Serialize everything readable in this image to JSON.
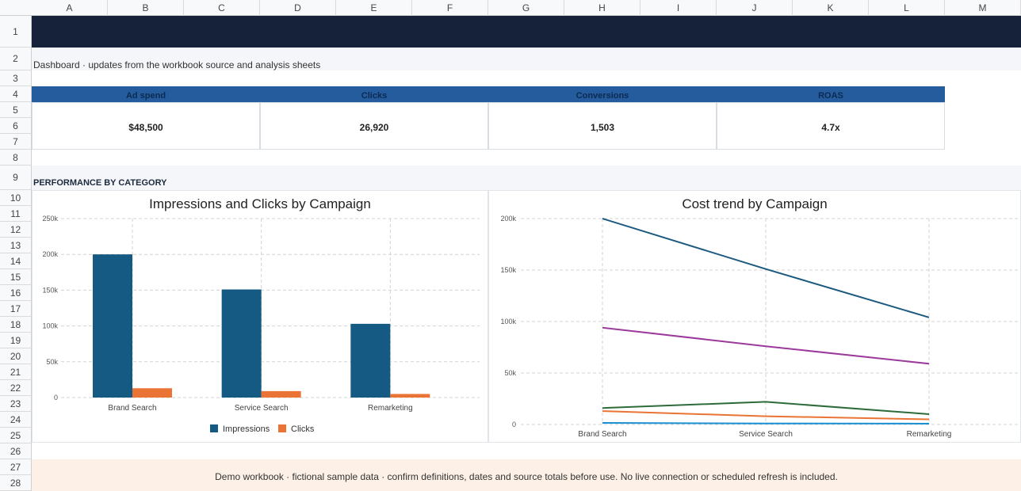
{
  "columns": [
    "A",
    "B",
    "C",
    "D",
    "E",
    "F",
    "G",
    "H",
    "I",
    "J",
    "K",
    "L",
    "M"
  ],
  "rows": [
    "1",
    "2",
    "3",
    "4",
    "5",
    "6",
    "7",
    "8",
    "9",
    "10",
    "11",
    "12",
    "13",
    "14",
    "15",
    "16",
    "17",
    "18",
    "19",
    "20",
    "21",
    "22",
    "23",
    "24",
    "25",
    "26",
    "27",
    "28"
  ],
  "subtitle": "Dashboard · updates from the workbook source and analysis sheets",
  "kpis": [
    {
      "label": "Ad spend",
      "value": "$48,500"
    },
    {
      "label": "Clicks",
      "value": "26,920"
    },
    {
      "label": "Conversions",
      "value": "1,503"
    },
    {
      "label": "ROAS",
      "value": "4.7x"
    }
  ],
  "section_title": "PERFORMANCE BY CATEGORY",
  "footer": "Demo workbook · fictional sample data · confirm definitions, dates and source totals before use. No live connection or scheduled refresh is included.",
  "colors": {
    "title_band": "#16213a",
    "kpi_header": "#245c9e",
    "impressions": "#155a82",
    "clicks": "#ea7436",
    "footer_band": "#fdf0e6"
  },
  "chart_data": [
    {
      "type": "bar",
      "title": "Impressions and Clicks by Campaign",
      "categories": [
        "Brand Search",
        "Service Search",
        "Remarketing"
      ],
      "series": [
        {
          "name": "Impressions",
          "values": [
            200000,
            151000,
            103000
          ],
          "color": "#155a82"
        },
        {
          "name": "Clicks",
          "values": [
            13000,
            9000,
            5000
          ],
          "color": "#ea7436"
        }
      ],
      "ylim": [
        0,
        250000
      ],
      "yticks": [
        0,
        50000,
        100000,
        150000,
        200000,
        250000
      ],
      "ytick_labels": [
        "0",
        "50k",
        "100k",
        "150k",
        "200k",
        "250k"
      ],
      "grid": true,
      "legend": "bottom"
    },
    {
      "type": "line",
      "title": "Cost trend by Campaign",
      "categories": [
        "Brand Search",
        "Service Search",
        "Remarketing"
      ],
      "series": [
        {
          "values": [
            200000,
            151000,
            104000
          ],
          "color": "#1d5a80"
        },
        {
          "values": [
            94000,
            76000,
            59000
          ],
          "color": "#9c3a9c"
        },
        {
          "values": [
            16000,
            22000,
            10000
          ],
          "color": "#2e6b3a"
        },
        {
          "values": [
            13000,
            8000,
            5000
          ],
          "color": "#ea7436"
        },
        {
          "values": [
            1500,
            1000,
            800
          ],
          "color": "#1a8fd1"
        }
      ],
      "ylim": [
        0,
        200000
      ],
      "yticks": [
        0,
        50000,
        100000,
        150000,
        200000
      ],
      "ytick_labels": [
        "0",
        "50k",
        "100k",
        "150k",
        "200k"
      ],
      "grid": true,
      "legend": "none"
    }
  ]
}
